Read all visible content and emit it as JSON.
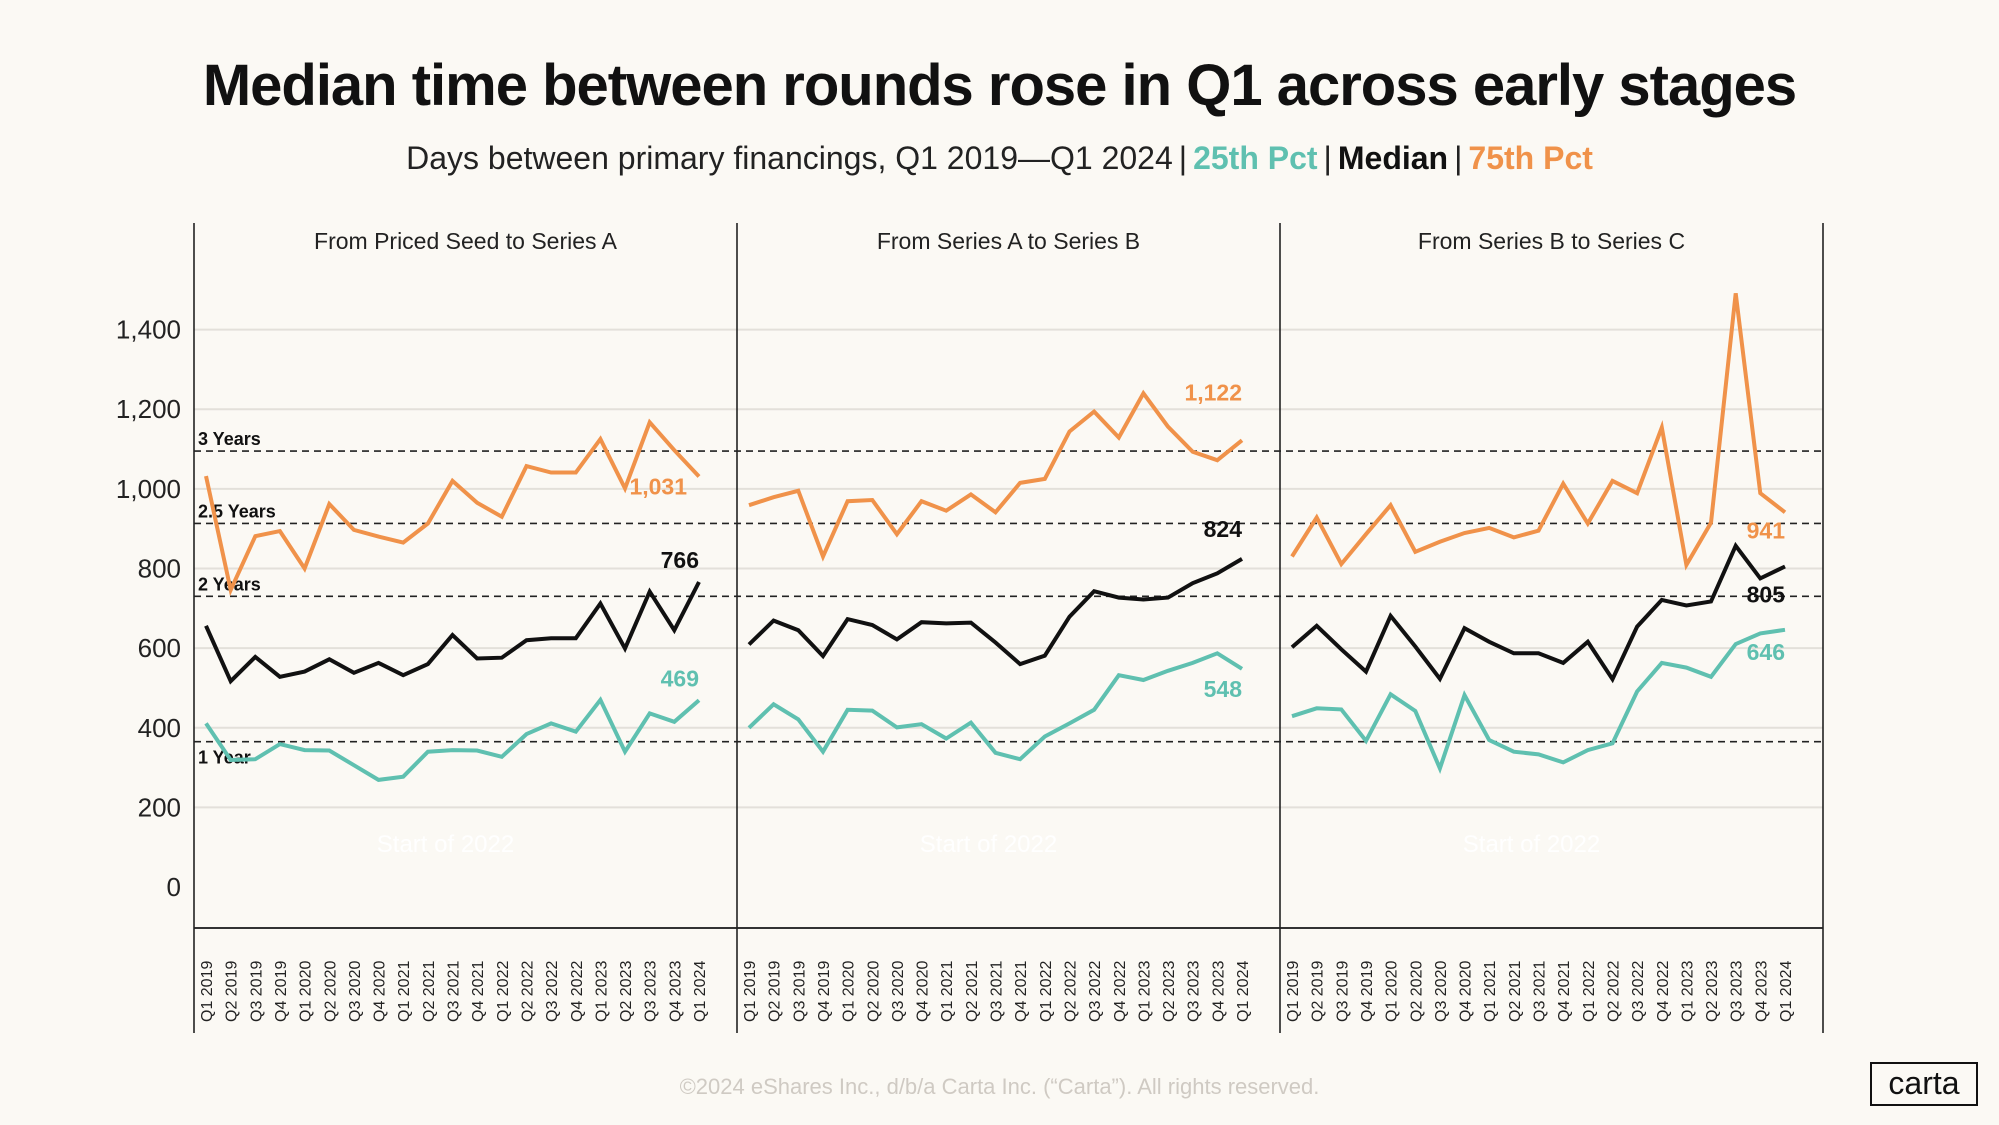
{
  "header": {
    "title": "Median time between rounds rose in Q1 across early stages",
    "subtitle_text": "Days between primary financings, Q1 2019—Q1 2024",
    "legend_25": "25th Pct",
    "legend_median": "Median",
    "legend_75": "75th Pct",
    "separator": "|"
  },
  "footer": "©2024 eShares Inc., d/b/a Carta Inc. (“Carta”). All rights reserved.",
  "logo": "carta",
  "colors": {
    "p25": "#5FC0B0",
    "median": "#111111",
    "p75": "#F0924A",
    "background": "#FBF9F4"
  },
  "chart_data": {
    "type": "line",
    "ylim": [
      0,
      1400
    ],
    "yticks": [
      0,
      200,
      400,
      600,
      800,
      1000,
      1200,
      1400
    ],
    "ytick_labels": [
      "0",
      "200",
      "400",
      "600",
      "800",
      "1,000",
      "1,200",
      "1,400"
    ],
    "grid": true,
    "categories": [
      "Q1 2019",
      "Q2 2019",
      "Q3 2019",
      "Q4 2019",
      "Q1 2020",
      "Q2 2020",
      "Q3 2020",
      "Q4 2020",
      "Q1 2021",
      "Q2 2021",
      "Q3 2021",
      "Q4 2021",
      "Q1 2022",
      "Q2 2022",
      "Q3 2022",
      "Q4 2022",
      "Q1 2023",
      "Q2 2023",
      "Q3 2023",
      "Q4 2023",
      "Q1 2024"
    ],
    "reference_lines": [
      {
        "label": "1 Year",
        "value": 365
      },
      {
        "label": "2 Years",
        "value": 730
      },
      {
        "label": "2.5 Years",
        "value": 913
      },
      {
        "label": "3 Years",
        "value": 1095
      }
    ],
    "annotation": "Start of 2022",
    "panels": [
      {
        "title": "From Priced Seed to Series A",
        "series": [
          {
            "name": "75th Pct",
            "values": [
              1032,
              746,
              881,
              894,
              800,
              962,
              897,
              880,
              865,
              913,
              1020,
              965,
              930,
              1057,
              1041,
              1041,
              1125,
              1001,
              1167,
              1097,
              1031
            ],
            "end_label": "1,031"
          },
          {
            "name": "Median",
            "values": [
              656,
              517,
              578,
              528,
              541,
              572,
              538,
              563,
              532,
              560,
              633,
              574,
              576,
              620,
              625,
              625,
              712,
              599,
              742,
              645,
              766
            ],
            "end_label": "766"
          },
          {
            "name": "25th Pct",
            "values": [
              411,
              319,
              321,
              359,
              344,
              343,
              306,
              269,
              277,
              340,
              344,
              343,
              327,
              384,
              411,
              390,
              470,
              340,
              436,
              415,
              469
            ],
            "end_label": "469"
          }
        ]
      },
      {
        "title": "From Series A to Series B",
        "series": [
          {
            "name": "75th Pct",
            "values": [
              959,
              979,
              995,
              830,
              969,
              972,
              886,
              969,
              945,
              986,
              941,
              1015,
              1025,
              1144,
              1194,
              1129,
              1240,
              1156,
              1093,
              1072,
              1122
            ],
            "end_label": "1,122"
          },
          {
            "name": "Median",
            "values": [
              609,
              669,
              645,
              580,
              673,
              658,
              622,
              665,
              662,
              664,
              614,
              560,
              581,
              679,
              743,
              727,
              722,
              727,
              763,
              788,
              824
            ],
            "end_label": "824"
          },
          {
            "name": "25th Pct",
            "values": [
              400,
              459,
              421,
              340,
              445,
              443,
              401,
              409,
              373,
              413,
              337,
              321,
              378,
              411,
              445,
              532,
              520,
              543,
              563,
              587,
              548
            ],
            "end_label": "548"
          }
        ]
      },
      {
        "title": "From Series B to Series C",
        "series": [
          {
            "name": "75th Pct",
            "values": [
              830,
              928,
              811,
              886,
              959,
              842,
              867,
              889,
              902,
              878,
              895,
              1013,
              913,
              1020,
              989,
              1154,
              809,
              915,
              1491,
              989,
              941
            ],
            "end_label": "941"
          },
          {
            "name": "Median",
            "values": [
              602,
              656,
              597,
              541,
              681,
              604,
              523,
              650,
              616,
              587,
              587,
              563,
              616,
              522,
              654,
              721,
              707,
              717,
              857,
              775,
              805
            ],
            "end_label": "805"
          },
          {
            "name": "25th Pct",
            "values": [
              429,
              449,
              446,
              367,
              484,
              442,
              298,
              482,
              369,
              340,
              333,
              313,
              344,
              361,
              491,
              563,
              551,
              528,
              610,
              637,
              646
            ],
            "end_label": "646"
          }
        ]
      }
    ]
  }
}
